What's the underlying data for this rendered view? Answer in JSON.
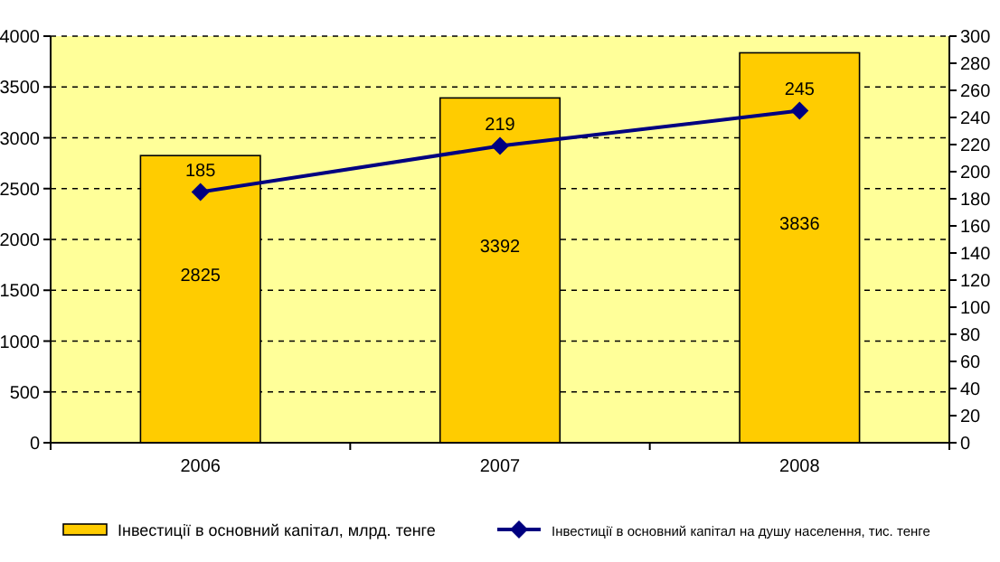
{
  "chart_data": {
    "type": "bar",
    "categories": [
      "2006",
      "2007",
      "2008"
    ],
    "series": [
      {
        "name": "Інвестиції в основний капітал, млрд. тенге",
        "color": "#ffcc00",
        "values": [
          2825,
          3392,
          3836
        ]
      },
      {
        "name": "Інвестиції в основний капітал на душу населення, тис. тенге",
        "type": "line",
        "axis": "y2",
        "color": "#000080",
        "values": [
          185,
          219,
          245
        ]
      }
    ],
    "ylim": [
      0,
      4000
    ],
    "yticks": [
      0,
      500,
      1000,
      1500,
      2000,
      2500,
      3000,
      3500,
      4000
    ],
    "y2lim": [
      0,
      300
    ],
    "y2ticks": [
      0,
      20,
      40,
      60,
      80,
      100,
      120,
      140,
      160,
      180,
      200,
      220,
      240,
      260,
      280,
      300
    ],
    "grid": "y",
    "legend": "bottom",
    "marker": "diamond",
    "data_labels": true
  }
}
